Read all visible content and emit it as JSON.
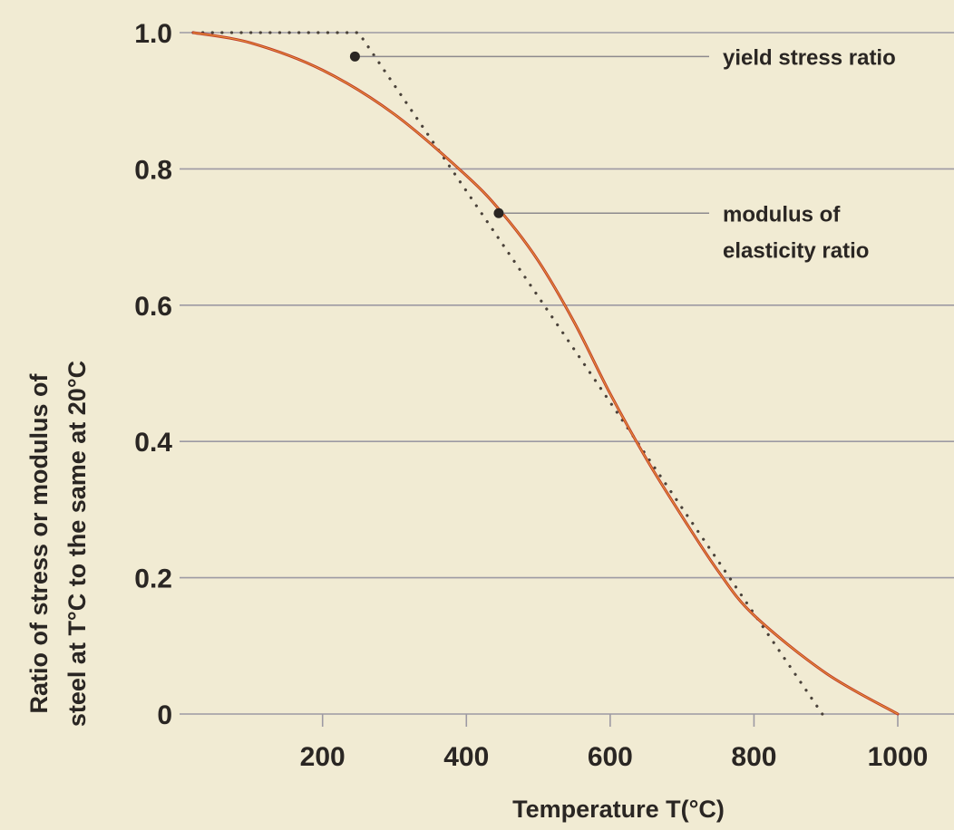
{
  "chart_data": {
    "type": "line",
    "title": "",
    "xlabel": "Temperature T(°C)",
    "ylabel_line1": "Ratio of stress or modulus of",
    "ylabel_line2": "steel at T°C to the same at 20°C",
    "xlim": [
      20,
      1000
    ],
    "ylim": [
      0,
      1.0
    ],
    "x_ticks": [
      200,
      400,
      600,
      800,
      1000
    ],
    "x_tick_labels": [
      "200",
      "400",
      "600",
      "800",
      "1000"
    ],
    "y_ticks": [
      0,
      0.2,
      0.4,
      0.6,
      0.8,
      1.0
    ],
    "y_tick_labels": [
      "0",
      "0.2",
      "0.4",
      "0.6",
      "0.8",
      "1.0"
    ],
    "grid": "horizontal",
    "series": [
      {
        "name": "yield stress ratio",
        "style": "dotted",
        "color": "#4a423a",
        "x": [
          20,
          250,
          895
        ],
        "y": [
          1.0,
          1.0,
          0.0
        ]
      },
      {
        "name": "modulus of elasticity ratio",
        "style": "solid",
        "color": "#c0392b",
        "x": [
          20,
          100,
          200,
          300,
          400,
          450,
          500,
          550,
          600,
          650,
          700,
          750,
          800,
          900,
          1000
        ],
        "y": [
          1.0,
          0.985,
          0.945,
          0.88,
          0.79,
          0.735,
          0.665,
          0.575,
          0.47,
          0.375,
          0.29,
          0.21,
          0.145,
          0.06,
          0.0
        ]
      }
    ],
    "annotations": [
      {
        "text_lines": [
          "yield stress ratio"
        ],
        "point": [
          245,
          0.965
        ],
        "series": "yield stress ratio"
      },
      {
        "text_lines": [
          "modulus of",
          "elasticity ratio"
        ],
        "point": [
          445,
          0.735
        ],
        "series": "modulus of elasticity ratio"
      }
    ]
  }
}
